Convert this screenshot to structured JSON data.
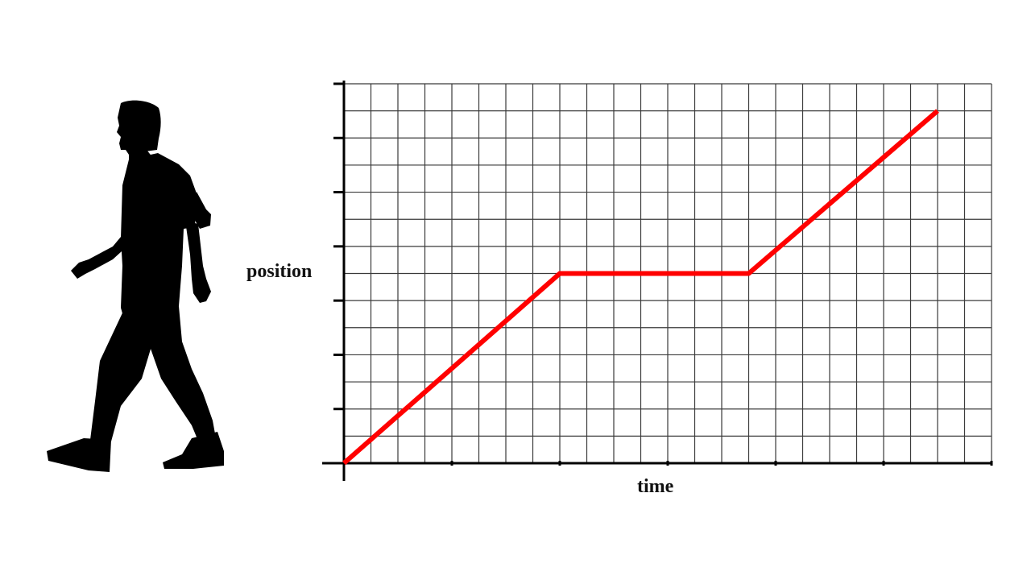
{
  "figure": {
    "figure_icon": "walking-person-silhouette-icon"
  },
  "chart_data": {
    "type": "line",
    "xlabel": "time",
    "ylabel": "position",
    "xlim": [
      0,
      24
    ],
    "ylim": [
      0,
      14
    ],
    "x_major_ticks": [
      0,
      4,
      8,
      12,
      16,
      20,
      24
    ],
    "y_major_ticks": [
      0,
      2,
      4,
      6,
      8,
      10,
      12,
      14
    ],
    "grid": true,
    "series": [
      {
        "color": "#ff0000",
        "x": [
          0,
          8,
          15,
          22
        ],
        "y": [
          0,
          7,
          7,
          13
        ]
      }
    ]
  }
}
